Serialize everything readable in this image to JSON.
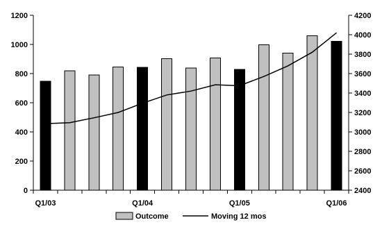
{
  "chart_data": {
    "type": "bar",
    "categories": [
      "Q1/03",
      "Q2/03",
      "Q3/03",
      "Q4/03",
      "Q1/04",
      "Q2/04",
      "Q3/04",
      "Q4/04",
      "Q1/05",
      "Q2/05",
      "Q3/05",
      "Q4/05",
      "Q1/06"
    ],
    "x_tick_labels": [
      "Q1/03",
      "Q1/04",
      "Q1/05",
      "Q1/06"
    ],
    "series": [
      {
        "name": "Outcome",
        "kind": "bar",
        "axis": "left",
        "values": [
          748,
          818,
          790,
          845,
          842,
          903,
          838,
          908,
          828,
          998,
          940,
          1060,
          1022
        ],
        "color": "#c0c0c0",
        "highlight_color": "#000000",
        "highlight_categories": [
          "Q1/03",
          "Q1/04",
          "Q1/05",
          "Q1/06"
        ]
      },
      {
        "name": "Moving 12 mos",
        "kind": "line",
        "axis": "right",
        "values": [
          3085,
          3095,
          3145,
          3200,
          3295,
          3380,
          3420,
          3485,
          3475,
          3570,
          3680,
          3820,
          4020
        ],
        "color": "#000000"
      }
    ],
    "y_left": {
      "ylim": [
        0,
        1200
      ],
      "ticks": [
        "0",
        "200",
        "400",
        "600",
        "800",
        "1000",
        "1200"
      ]
    },
    "y_right": {
      "ylim": [
        2400,
        4200
      ],
      "ticks": [
        "2400",
        "2600",
        "2800",
        "3000",
        "3200",
        "3400",
        "3600",
        "3800",
        "4000",
        "4200"
      ]
    },
    "title": "",
    "xlabel": "",
    "ylabel": "",
    "grid": false,
    "legend_position": "bottom-center"
  }
}
